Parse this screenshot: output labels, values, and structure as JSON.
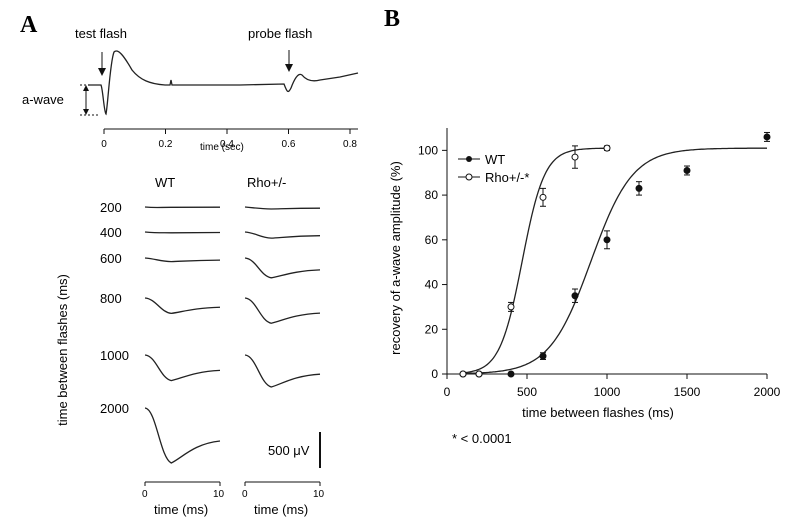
{
  "panels": {
    "a_label": "A",
    "b_label": "B"
  },
  "panel_a_top": {
    "test_flash_label": "test flash",
    "probe_flash_label": "probe flash",
    "awave_label": "a-wave",
    "x_title": "time (sec)",
    "x_ticks": [
      "0",
      "0.2",
      "0.4",
      "0.6",
      "0.8"
    ]
  },
  "panel_a_bottom": {
    "col_wt": "WT",
    "col_rho": "Rho+/-",
    "row_axis_title": "time between flashes (ms)",
    "rows": [
      {
        "label": "200",
        "wt_depth": 0.05,
        "rho_depth": 0.15
      },
      {
        "label": "400",
        "wt_depth": 0.1,
        "rho_depth": 0.35
      },
      {
        "label": "600",
        "wt_depth": 0.3,
        "rho_depth": 0.75
      },
      {
        "label": "800",
        "wt_depth": 0.55,
        "rho_depth": 0.9
      },
      {
        "label": "1000",
        "wt_depth": 0.8,
        "rho_depth": 1.0
      },
      {
        "label": "2000",
        "wt_depth": 1.0,
        "rho_depth": null
      }
    ],
    "scale_bar_label": "500 μV",
    "x_title": "time (ms)",
    "x_ticks": [
      "0",
      "10"
    ]
  },
  "chart_data": {
    "type": "scatter",
    "xlabel": "time between flashes (ms)",
    "ylabel": "recovery of a-wave amplitude (%)",
    "xlim": [
      0,
      2000
    ],
    "ylim": [
      0,
      110
    ],
    "x_ticks": [
      0,
      500,
      1000,
      1500,
      2000
    ],
    "y_ticks": [
      0,
      20,
      40,
      60,
      80,
      100
    ],
    "legend_position": "top-left",
    "footnote": "* < 0.0001",
    "series": [
      {
        "name": "WT",
        "marker": "filled-circle",
        "x": [
          100,
          200,
          400,
          600,
          800,
          1000,
          1200,
          1500,
          2000
        ],
        "y": [
          0,
          0,
          0,
          8,
          35,
          60,
          83,
          91,
          106
        ],
        "err": [
          0,
          0,
          0,
          1.5,
          3,
          4,
          3,
          2,
          2
        ],
        "fit": {
          "x50": 900,
          "slope": 130,
          "max": 101
        }
      },
      {
        "name": "Rho+/-*",
        "marker": "open-circle",
        "x": [
          100,
          200,
          400,
          600,
          800,
          1000
        ],
        "y": [
          0,
          0,
          30,
          79,
          97,
          101
        ],
        "err": [
          0,
          0,
          2,
          4,
          5,
          1
        ],
        "fit": {
          "x50": 470,
          "slope": 70,
          "max": 101
        }
      }
    ]
  }
}
